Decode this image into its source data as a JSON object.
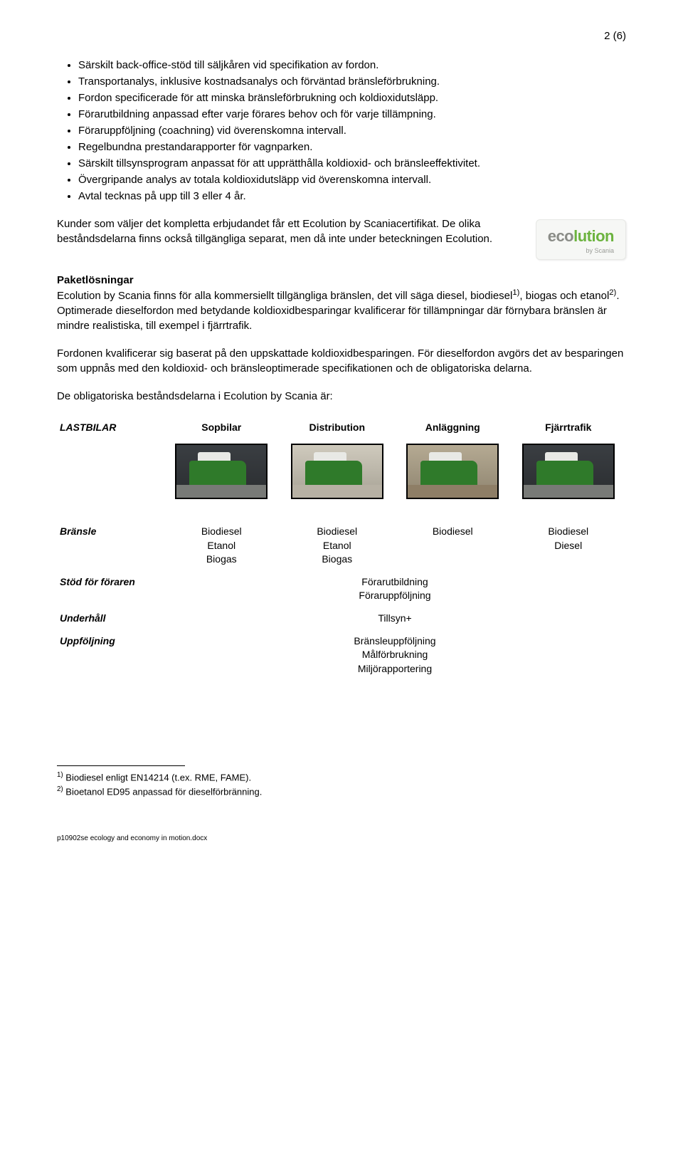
{
  "pageNumber": "2 (6)",
  "bullets": [
    "Särskilt back-office-stöd till säljkåren vid specifikation av fordon.",
    "Transportanalys, inklusive kostnadsanalys och förväntad bränsleförbrukning.",
    "Fordon specificerade för att minska bränsleförbrukning och koldioxidutsläpp.",
    "Förarutbildning anpassad efter varje förares behov och för varje tillämpning.",
    "Föraruppföljning (coachning) vid överenskomna intervall.",
    "Regelbundna prestandarapporter för vagnparken.",
    "Särskilt tillsynsprogram anpassat för att upprätthålla koldioxid- och bränsleeffektivitet.",
    "Övergripande analys av totala koldioxidutsläpp vid överenskomna intervall.",
    "Avtal tecknas på upp till 3 eller 4 år."
  ],
  "logo": {
    "part1": "eco",
    "part2": "lution",
    "sub": "by Scania"
  },
  "p1": "Kunder som väljer det kompletta erbjudandet får ett Ecolution by Scaniacertifikat. De olika beståndsdelarna finns också tillgängliga separat, men då inte under beteckningen Ecolution.",
  "h1": "Paketlösningar",
  "p2a": "Ecolution by Scania finns för alla kommersiellt tillgängliga bränslen, det vill säga diesel, biodiesel",
  "p2b": ", biogas och etanol",
  "p2c": ". Optimerade dieselfordon med betydande koldioxidbesparingar kvalificerar för tillämpningar där förnybara bränslen är mindre realistiska, till exempel i fjärrtrafik.",
  "sup1": "1)",
  "sup2": "2)",
  "p3": "Fordonen kvalificerar sig baserat på den uppskattade koldioxidbesparingen. För dieselfordon avgörs det av besparingen som uppnås med den koldioxid- och bränsleoptimerade specifikationen och de obligatoriska delarna.",
  "p4": "De obligatoriska beståndsdelarna i Ecolution by Scania är:",
  "table": {
    "rowHeaderTitle": "LASTBILAR",
    "cols": [
      "Sopbilar",
      "Distribution",
      "Anläggning",
      "Fjärrtrafik"
    ],
    "rows": {
      "bransle": {
        "label": "Bränsle",
        "cells": [
          "Biodiesel\nEtanol\nBiogas",
          "Biodiesel\nEtanol\nBiogas",
          "Biodiesel",
          "Biodiesel\nDiesel"
        ]
      },
      "stod": {
        "label": "Stöd för föraren",
        "merged": "Förarutbildning\nFöraruppföljning"
      },
      "underhall": {
        "label": "Underhåll",
        "merged": "Tillsyn+"
      },
      "uppfoljning": {
        "label": "Uppföljning",
        "merged": "Bränsleuppföljning\nMålförbrukning\nMiljörapportering"
      }
    }
  },
  "footnote1pre": "1)",
  "footnote1": " Biodiesel enligt EN14214 (t.ex. RME, FAME).",
  "footnote2pre": "2)",
  "footnote2": " Bioetanol ED95 anpassad för dieselförbränning.",
  "docref": "p10902se ecology and economy in motion.docx"
}
